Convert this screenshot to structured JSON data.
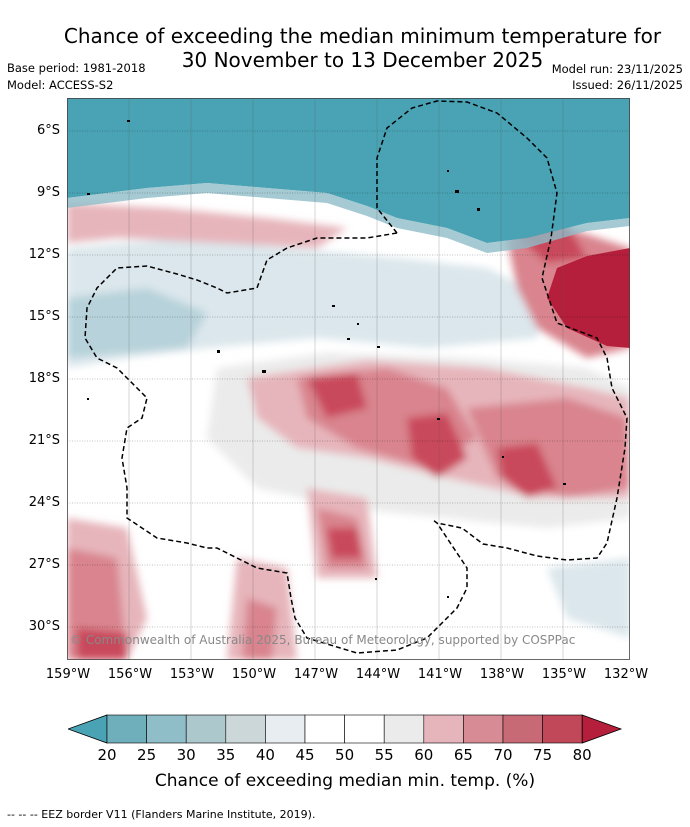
{
  "header": {
    "title_line1": "Chance of exceeding the median minimum temperature for",
    "title_line2": "30 November to 13 December 2025",
    "base_period": "Base period: 1981-2018",
    "model": "Model: ACCESS-S2",
    "model_run": "Model run: 23/11/2025",
    "issued": "Issued: 26/11/2025"
  },
  "map": {
    "copyright": "© Commonwealth of Australia 2025, Bureau of Meteorology, supported by COSPPac",
    "lat_labels": [
      "6°S",
      "9°S",
      "12°S",
      "15°S",
      "18°S",
      "21°S",
      "24°S",
      "27°S",
      "30°S"
    ],
    "lon_labels": [
      "159°W",
      "156°W",
      "153°W",
      "150°W",
      "147°W",
      "144°W",
      "141°W",
      "138°W",
      "135°W",
      "132°W"
    ],
    "colors": {
      "below_20": "#4aa3b4",
      "deep_red": "#b51f3b",
      "red": "#c94a5c",
      "mid_red": "#d9848e",
      "light_red": "#e6b5bb",
      "grey": "#ebebeb",
      "light_blue": "#dbe7ec",
      "mid_blue": "#b7d2da",
      "white": "#ffffff"
    }
  },
  "colorbar": {
    "title": "Chance of exceeding median min. temp. (%)",
    "ticks": [
      "20",
      "25",
      "30",
      "35",
      "40",
      "45",
      "50",
      "55",
      "60",
      "65",
      "70",
      "75",
      "80"
    ],
    "colors": [
      "#4aa3b4",
      "#6faebb",
      "#8fbdc8",
      "#acc8cd",
      "#ccd7d9",
      "#e7edf0",
      "#ffffff",
      "#ffffff",
      "#ebebeb",
      "#e6b5bb",
      "#d78c95",
      "#c86a75",
      "#c04858",
      "#b51f3b"
    ]
  },
  "footer": {
    "legend_text": "--  --  -- EEZ border V11 (Flanders Marine Institute, 2019)."
  }
}
